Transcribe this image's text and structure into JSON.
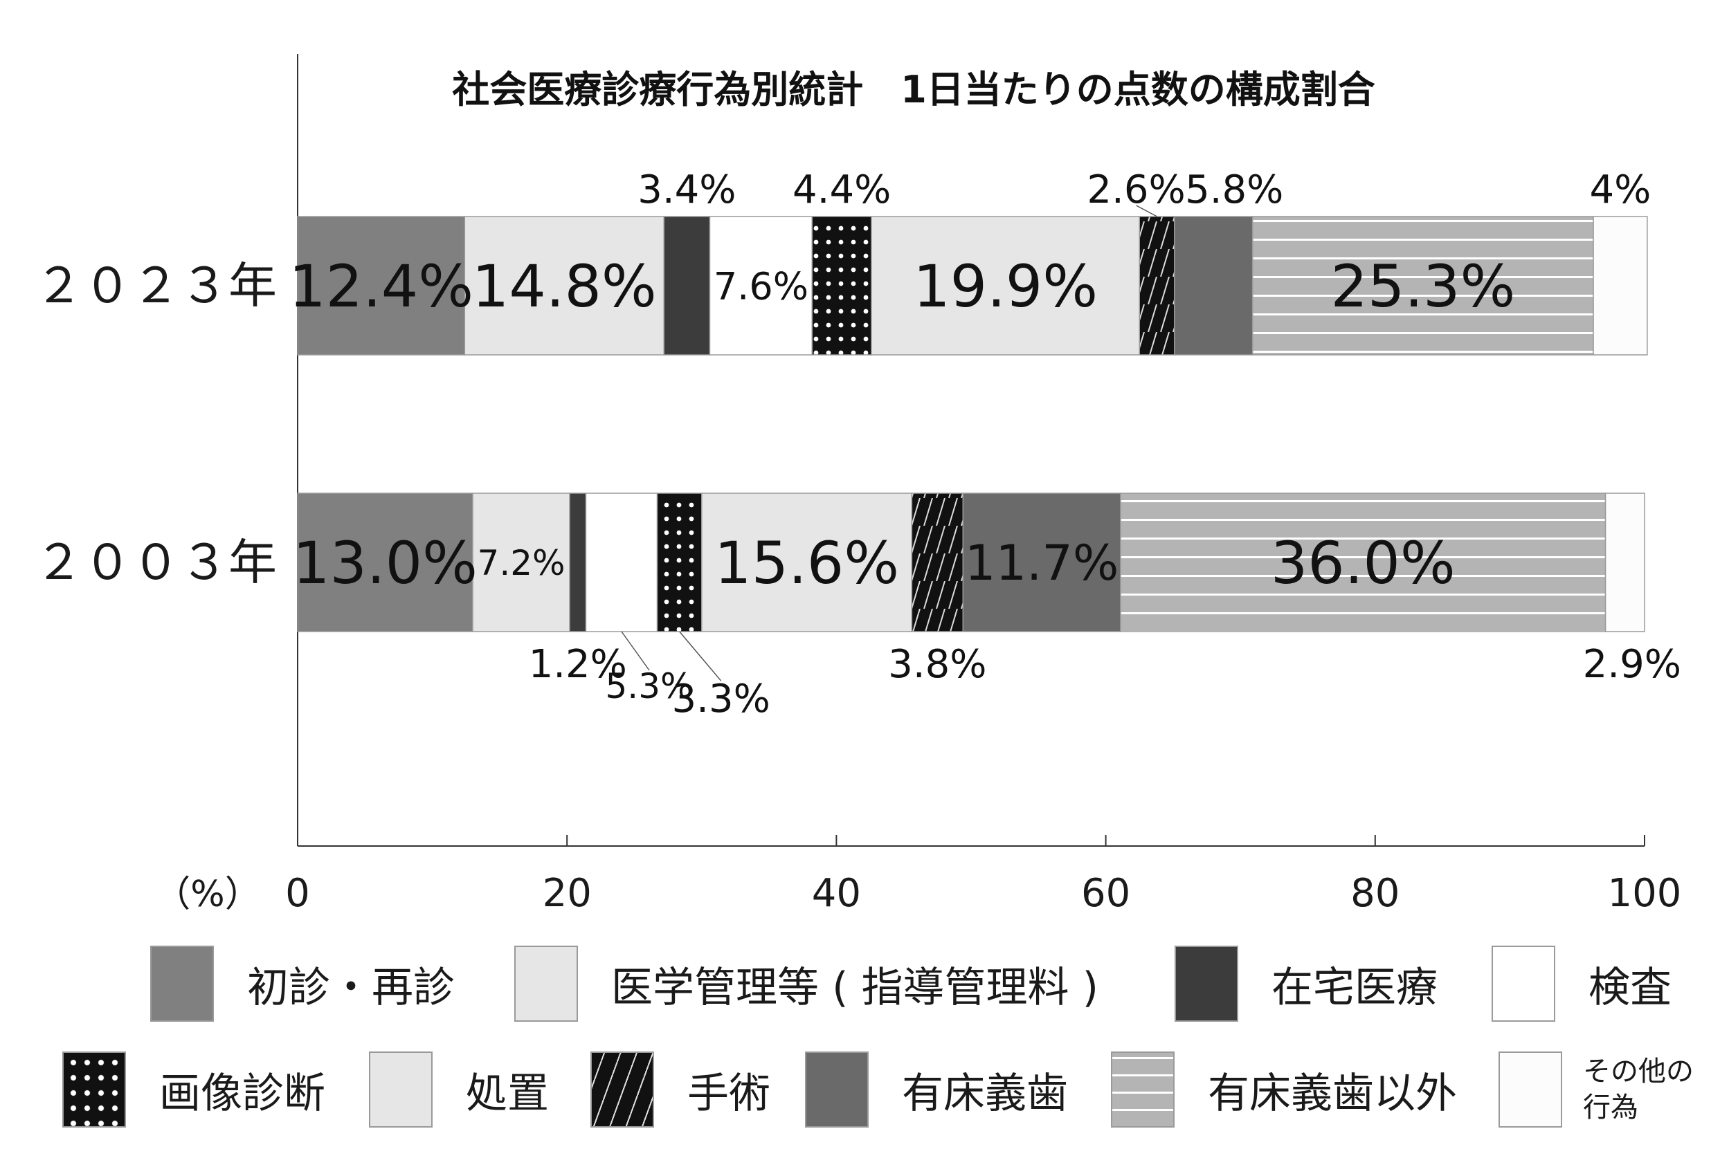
{
  "chart_data": {
    "type": "bar",
    "orientation": "horizontal",
    "stacked": true,
    "title": "社会医療診療行為別統計　1日当たりの点数の構成割合",
    "xlabel": "（%）",
    "xlim": [
      0,
      100
    ],
    "xticks": [
      "0",
      "20",
      "40",
      "60",
      "80",
      "100"
    ],
    "categories": [
      "２０２３年",
      "２００３年"
    ],
    "series": [
      {
        "name": "初診・再診",
        "values": [
          12.4,
          13.0
        ],
        "labels": [
          "12.4%",
          "13.0%"
        ],
        "color": "#808080",
        "pattern": "solid"
      },
      {
        "name": "医学管理等（指導管理料）",
        "values": [
          14.8,
          7.2
        ],
        "labels": [
          "14.8%",
          "7.2%"
        ],
        "color": "#e6e6e6",
        "pattern": "solid"
      },
      {
        "name": "在宅医療",
        "values": [
          3.4,
          1.2
        ],
        "labels": [
          "3.4%",
          "1.2%"
        ],
        "color": "#3c3c3c",
        "pattern": "solid"
      },
      {
        "name": "検査",
        "values": [
          7.6,
          5.3
        ],
        "labels": [
          "7.6%",
          "5.3%"
        ],
        "color": "#ffffff",
        "pattern": "solid"
      },
      {
        "name": "画像診断",
        "values": [
          4.4,
          3.3
        ],
        "labels": [
          "4.4%",
          "3.3%"
        ],
        "color": "#111111",
        "pattern": "dots"
      },
      {
        "name": "処置",
        "values": [
          19.9,
          15.6
        ],
        "labels": [
          "19.9%",
          "15.6%"
        ],
        "color": "#e6e6e6",
        "pattern": "solid"
      },
      {
        "name": "手術",
        "values": [
          2.6,
          3.8
        ],
        "labels": [
          "2.6%",
          "3.8%"
        ],
        "color": "#111111",
        "pattern": "hatch"
      },
      {
        "name": "有床義歯",
        "values": [
          5.8,
          11.7
        ],
        "labels": [
          "5.8%",
          "11.7%"
        ],
        "color": "#6a6a6a",
        "pattern": "solid"
      },
      {
        "name": "有床義歯以外",
        "values": [
          25.3,
          36.0
        ],
        "labels": [
          "25.3%",
          "36.0%"
        ],
        "color": "#b4b4b4",
        "pattern": "hlines"
      },
      {
        "name": "その他の行為",
        "values": [
          4.0,
          2.9
        ],
        "labels": [
          "4%",
          "2.9%"
        ],
        "color": "#fcfcfc",
        "pattern": "solid"
      }
    ],
    "legend": {
      "position": "bottom",
      "rows": [
        [
          "初診・再診",
          "医学管理等 ( 指導管理料 )",
          "在宅医療",
          "検査"
        ],
        [
          "画像診断",
          "処置",
          "手術",
          "有床義歯",
          "有床義歯以外",
          "その他の行為"
        ]
      ],
      "last_label_lines": [
        "その他の",
        "行為"
      ]
    },
    "grid": false
  }
}
